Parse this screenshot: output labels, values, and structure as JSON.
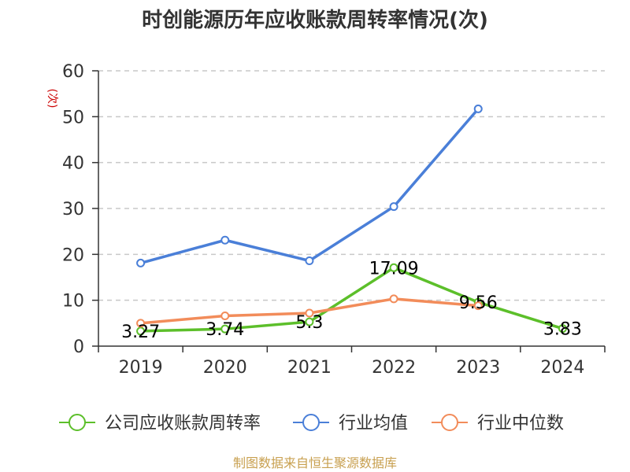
{
  "chart_data": {
    "type": "line",
    "title": "时创能源历年应收账款周转率情况(次)",
    "ylabel": "(次)",
    "xlabel": "",
    "categories": [
      "2019",
      "2020",
      "2021",
      "2022",
      "2023",
      "2024"
    ],
    "ylim": [
      0,
      60
    ],
    "yticks": [
      0,
      10,
      20,
      30,
      40,
      50,
      60
    ],
    "grid": true,
    "legend_position": "bottom",
    "series": [
      {
        "name": "公司应收账款周转率",
        "color": "#5cbf2a",
        "values": [
          3.27,
          3.74,
          5.3,
          17.09,
          9.56,
          3.83
        ],
        "labels": [
          "3.27",
          "3.74",
          "5.3",
          "17.09",
          "9.56",
          "3.83"
        ]
      },
      {
        "name": "行业均值",
        "color": "#4a7fd8",
        "values": [
          18.1,
          23.1,
          18.6,
          30.4,
          51.7,
          null
        ]
      },
      {
        "name": "行业中位数",
        "color": "#f28c5a",
        "values": [
          5.0,
          6.6,
          7.2,
          10.3,
          8.8,
          null
        ]
      }
    ]
  },
  "source": "制图数据来自恒生聚源数据库"
}
